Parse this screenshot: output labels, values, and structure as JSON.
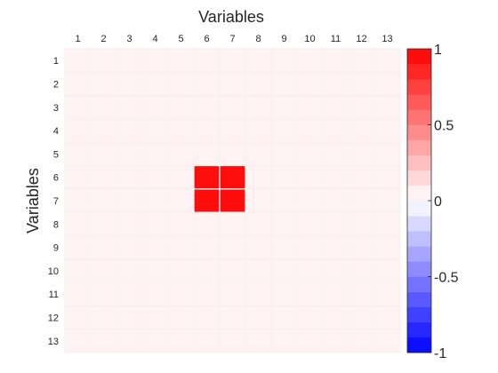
{
  "chart_data": {
    "type": "heatmap",
    "title": "",
    "xlabel": "Variables",
    "ylabel": "Variables",
    "x_tick_labels": [
      "1",
      "2",
      "3",
      "4",
      "5",
      "6",
      "7",
      "8",
      "9",
      "10",
      "11",
      "12",
      "13"
    ],
    "y_tick_labels": [
      "1",
      "2",
      "3",
      "4",
      "5",
      "6",
      "7",
      "8",
      "9",
      "10",
      "11",
      "12",
      "13"
    ],
    "x_axis_position": "top",
    "grid": true,
    "colorbar": {
      "position": "right",
      "clim": [
        -1,
        1
      ],
      "tick_values": [
        1,
        0.5,
        0,
        -0.5,
        -1
      ],
      "tick_labels": [
        "1",
        "0.5",
        "0",
        "-0.5",
        "-1"
      ],
      "levels": 20,
      "colors": {
        "negative": "#0000ff",
        "zero": "#ffffff",
        "positive": "#ff0000"
      }
    },
    "values": [
      [
        0,
        0,
        0,
        0,
        0,
        0,
        0,
        0,
        0,
        0,
        0,
        0,
        0
      ],
      [
        0,
        0,
        0,
        0,
        0,
        0,
        0,
        0,
        0,
        0,
        0,
        0,
        0
      ],
      [
        0,
        0,
        0,
        0,
        0,
        0,
        0,
        0,
        0,
        0,
        0,
        0,
        0
      ],
      [
        0,
        0,
        0,
        0,
        0,
        0,
        0,
        0,
        0,
        0,
        0,
        0,
        0
      ],
      [
        0,
        0,
        0,
        0,
        0,
        0,
        0,
        0,
        0,
        0,
        0,
        0,
        0
      ],
      [
        0,
        0,
        0,
        0,
        0,
        1,
        1,
        0,
        0,
        0,
        0,
        0,
        0
      ],
      [
        0,
        0,
        0,
        0,
        0,
        1,
        1,
        0,
        0,
        0,
        0,
        0,
        0
      ],
      [
        0,
        0,
        0,
        0,
        0,
        0,
        0,
        0,
        0,
        0,
        0,
        0,
        0
      ],
      [
        0,
        0,
        0,
        0,
        0,
        0,
        0,
        0,
        0,
        0,
        0,
        0,
        0
      ],
      [
        0,
        0,
        0,
        0,
        0,
        0,
        0,
        0,
        0,
        0,
        0,
        0,
        0
      ],
      [
        0,
        0,
        0,
        0,
        0,
        0,
        0,
        0,
        0,
        0,
        0,
        0,
        0
      ],
      [
        0,
        0,
        0,
        0,
        0,
        0,
        0,
        0,
        0,
        0,
        0,
        0,
        0
      ],
      [
        0,
        0,
        0,
        0,
        0,
        0,
        0,
        0,
        0,
        0,
        0,
        0,
        0
      ]
    ]
  }
}
